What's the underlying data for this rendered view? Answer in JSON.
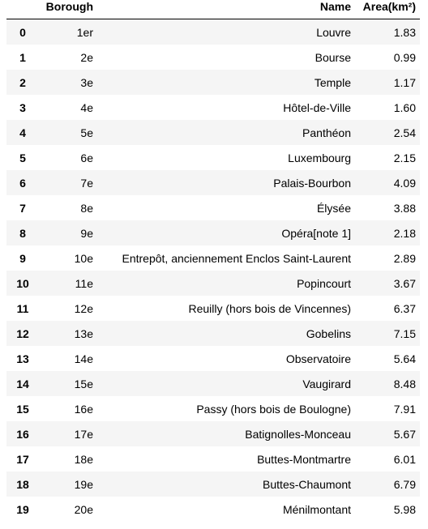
{
  "table": {
    "columns": {
      "index": "",
      "borough": "Borough",
      "name": "Name",
      "area": "Area(km²)"
    },
    "rows": [
      {
        "index": "0",
        "borough": "1er",
        "name": "Louvre",
        "area": "1.83"
      },
      {
        "index": "1",
        "borough": "2e",
        "name": "Bourse",
        "area": "0.99"
      },
      {
        "index": "2",
        "borough": "3e",
        "name": "Temple",
        "area": "1.17"
      },
      {
        "index": "3",
        "borough": "4e",
        "name": "Hôtel-de-Ville",
        "area": "1.60"
      },
      {
        "index": "4",
        "borough": "5e",
        "name": "Panthéon",
        "area": "2.54"
      },
      {
        "index": "5",
        "borough": "6e",
        "name": "Luxembourg",
        "area": "2.15"
      },
      {
        "index": "6",
        "borough": "7e",
        "name": "Palais-Bourbon",
        "area": "4.09"
      },
      {
        "index": "7",
        "borough": "8e",
        "name": "Élysée",
        "area": "3.88"
      },
      {
        "index": "8",
        "borough": "9e",
        "name": "Opéra[note 1]",
        "area": "2.18"
      },
      {
        "index": "9",
        "borough": "10e",
        "name": "Entrepôt, anciennement Enclos Saint-Laurent",
        "area": "2.89"
      },
      {
        "index": "10",
        "borough": "11e",
        "name": "Popincourt",
        "area": "3.67"
      },
      {
        "index": "11",
        "borough": "12e",
        "name": "Reuilly (hors bois de Vincennes)",
        "area": "6.37"
      },
      {
        "index": "12",
        "borough": "13e",
        "name": "Gobelins",
        "area": "7.15"
      },
      {
        "index": "13",
        "borough": "14e",
        "name": "Observatoire",
        "area": "5.64"
      },
      {
        "index": "14",
        "borough": "15e",
        "name": "Vaugirard",
        "area": "8.48"
      },
      {
        "index": "15",
        "borough": "16e",
        "name": "Passy (hors bois de Boulogne)",
        "area": "7.91"
      },
      {
        "index": "16",
        "borough": "17e",
        "name": "Batignolles-Monceau",
        "area": "5.67"
      },
      {
        "index": "17",
        "borough": "18e",
        "name": "Buttes-Montmartre",
        "area": "6.01"
      },
      {
        "index": "18",
        "borough": "19e",
        "name": "Buttes-Chaumont",
        "area": "6.79"
      },
      {
        "index": "19",
        "borough": "20e",
        "name": "Ménilmontant",
        "area": "5.98"
      }
    ]
  }
}
